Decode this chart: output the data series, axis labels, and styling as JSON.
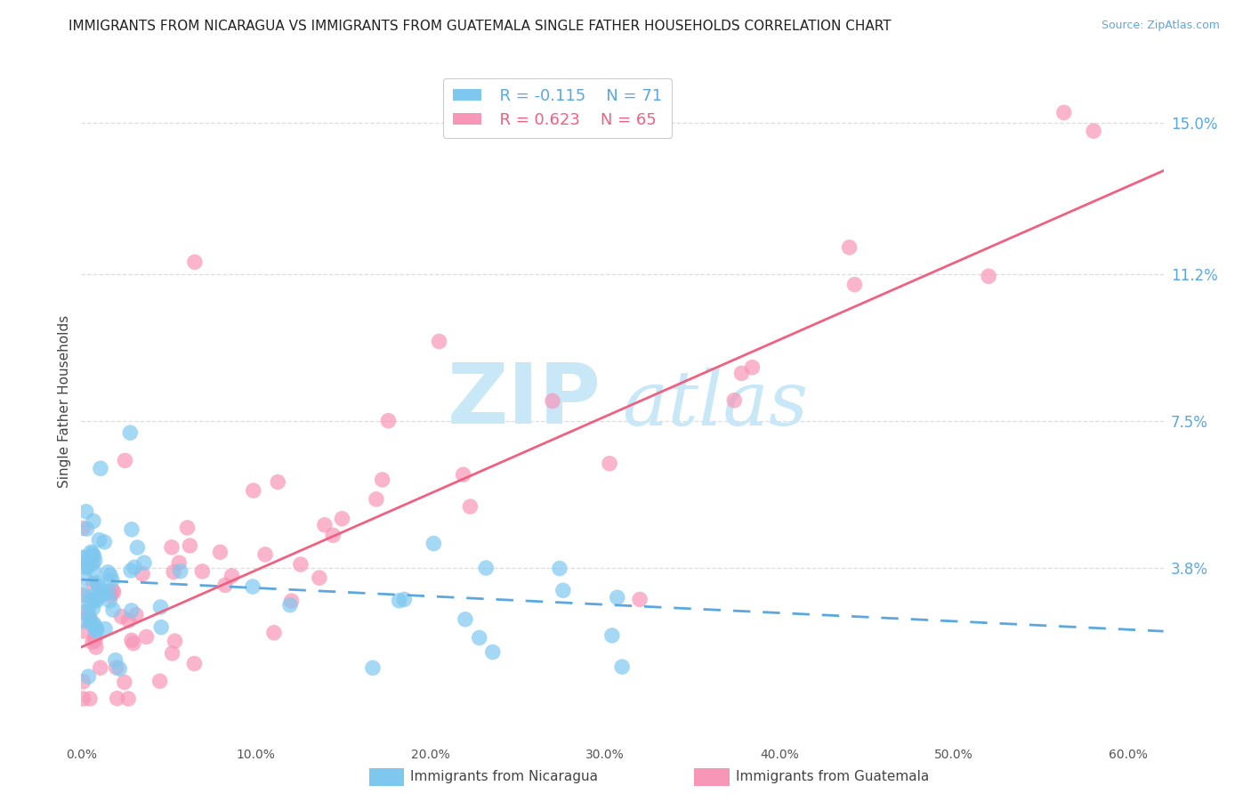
{
  "title": "IMMIGRANTS FROM NICARAGUA VS IMMIGRANTS FROM GUATEMALA SINGLE FATHER HOUSEHOLDS CORRELATION CHART",
  "source": "Source: ZipAtlas.com",
  "ylabel": "Single Father Households",
  "xlim": [
    0.0,
    0.62
  ],
  "ylim": [
    -0.005,
    0.165
  ],
  "xtick_vals": [
    0.0,
    0.1,
    0.2,
    0.3,
    0.4,
    0.5,
    0.6
  ],
  "xtick_labels": [
    "0.0%",
    "10.0%",
    "20.0%",
    "30.0%",
    "40.0%",
    "50.0%",
    "60.0%"
  ],
  "ytick_vals": [
    0.038,
    0.075,
    0.112,
    0.15
  ],
  "ytick_labels": [
    "3.8%",
    "7.5%",
    "11.2%",
    "15.0%"
  ],
  "legend_r1": "R = -0.115",
  "legend_n1": "N = 71",
  "legend_r2": "R = 0.623",
  "legend_n2": "N = 65",
  "color_blue": "#7EC8F0",
  "color_pink": "#F896B8",
  "color_blue_line": "#5BA8E0",
  "color_pink_line": "#F06080",
  "watermark_zip": "ZIP",
  "watermark_atlas": "atlas",
  "watermark_color": "#C8E8F8",
  "background_color": "#FFFFFF",
  "title_fontsize": 11,
  "source_fontsize": 9,
  "grid_color": "#DDDDDD",
  "tick_color_right": "#5BA8E0",
  "nic_line_x": [
    0.0,
    0.62
  ],
  "nic_line_y": [
    0.035,
    0.022
  ],
  "guat_line_x": [
    0.0,
    0.62
  ],
  "guat_line_y": [
    0.018,
    0.138
  ]
}
